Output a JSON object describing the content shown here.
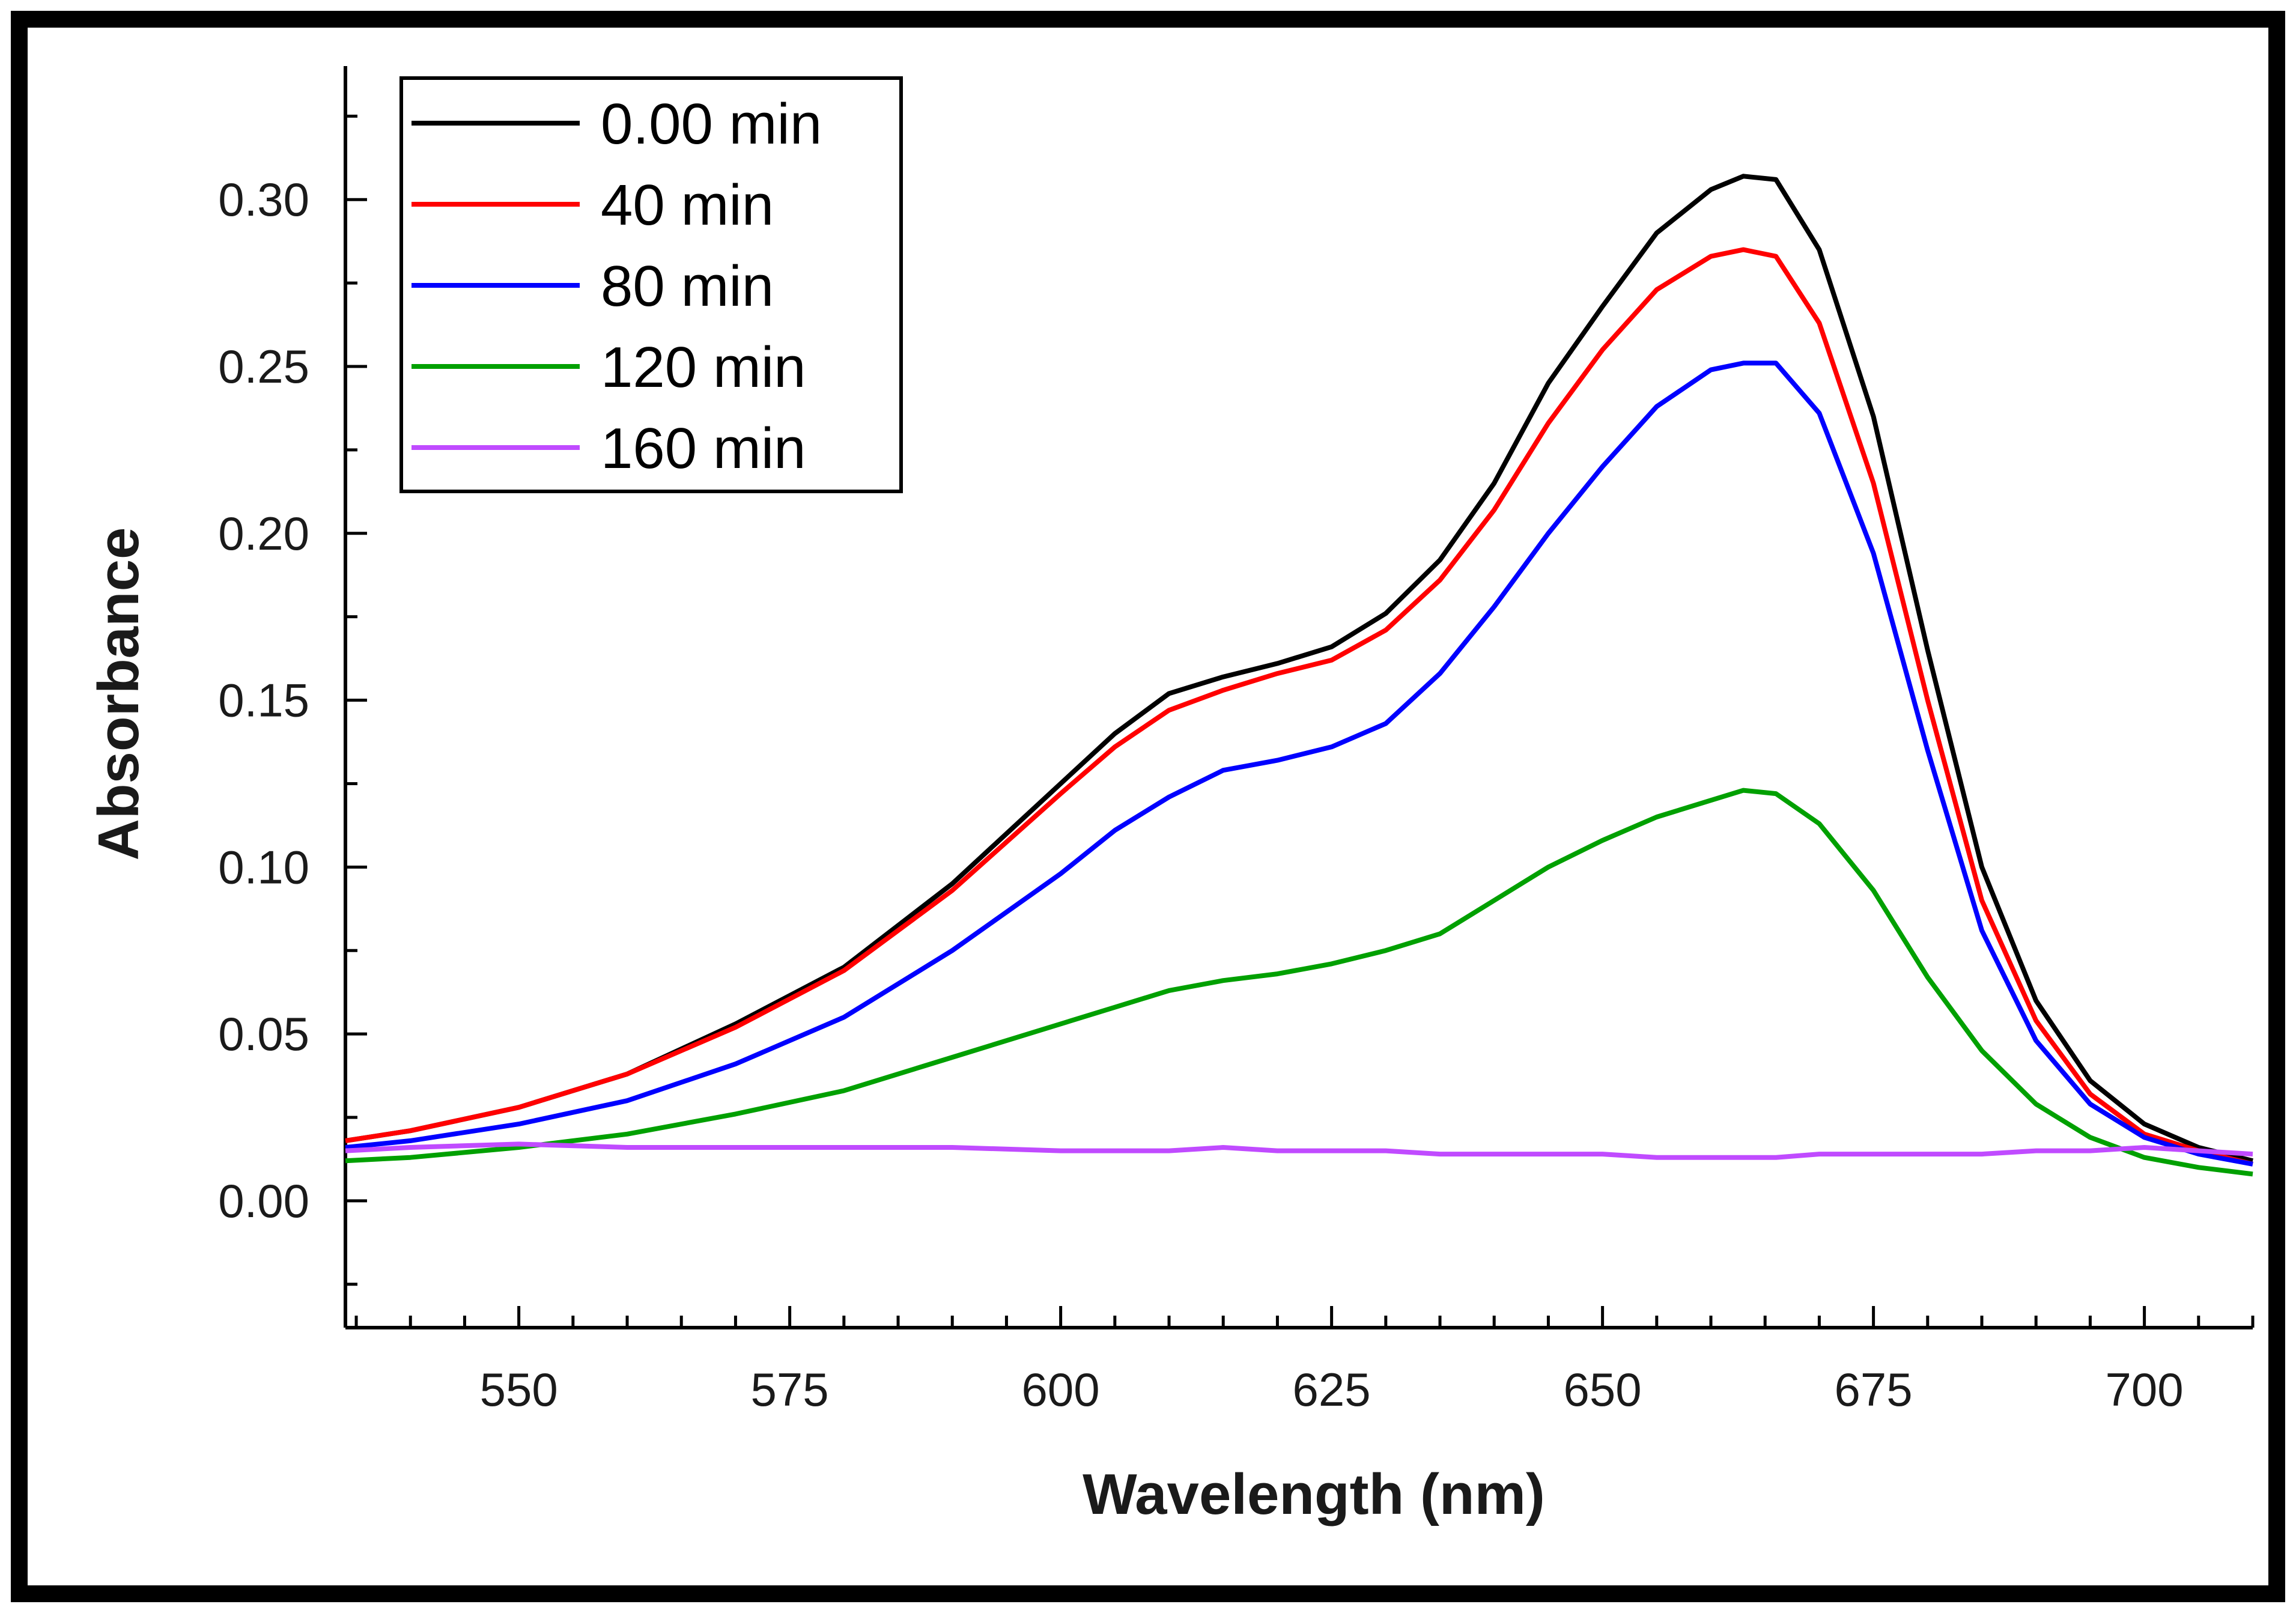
{
  "chart_data": {
    "type": "line",
    "title": "",
    "xlabel": "Wavelength (nm)",
    "ylabel": "Absorbance",
    "xlim": [
      534,
      710
    ],
    "ylim": [
      -0.038,
      0.34
    ],
    "x_ticks": [
      550,
      575,
      600,
      625,
      650,
      675,
      700
    ],
    "x_tick_labels": [
      "550",
      "575",
      "600",
      "625",
      "650",
      "675",
      "700"
    ],
    "y_ticks": [
      0.0,
      0.05,
      0.1,
      0.15,
      0.2,
      0.25,
      0.3
    ],
    "y_tick_labels": [
      "0.00",
      "0.05",
      "0.10",
      "0.15",
      "0.20",
      "0.25",
      "0.30"
    ],
    "grid": false,
    "legend_position": "top-left",
    "x": [
      534,
      540,
      550,
      560,
      570,
      580,
      590,
      600,
      605,
      610,
      615,
      620,
      625,
      630,
      635,
      640,
      645,
      650,
      655,
      660,
      663,
      666,
      670,
      675,
      680,
      685,
      690,
      695,
      700,
      705,
      710
    ],
    "series": [
      {
        "name": "0.00 min",
        "color": "#000000",
        "values": [
          0.018,
          0.021,
          0.028,
          0.038,
          0.053,
          0.07,
          0.095,
          0.125,
          0.14,
          0.152,
          0.157,
          0.161,
          0.166,
          0.176,
          0.192,
          0.215,
          0.245,
          0.268,
          0.29,
          0.303,
          0.307,
          0.306,
          0.285,
          0.235,
          0.165,
          0.1,
          0.06,
          0.036,
          0.023,
          0.016,
          0.012
        ]
      },
      {
        "name": "40 min",
        "color": "#ff0000",
        "values": [
          0.018,
          0.021,
          0.028,
          0.038,
          0.052,
          0.069,
          0.093,
          0.122,
          0.136,
          0.147,
          0.153,
          0.158,
          0.162,
          0.171,
          0.186,
          0.207,
          0.233,
          0.255,
          0.273,
          0.283,
          0.285,
          0.283,
          0.263,
          0.215,
          0.15,
          0.09,
          0.054,
          0.032,
          0.02,
          0.015,
          0.011
        ]
      },
      {
        "name": "80 min",
        "color": "#0000ff",
        "values": [
          0.016,
          0.018,
          0.023,
          0.03,
          0.041,
          0.055,
          0.075,
          0.098,
          0.111,
          0.121,
          0.129,
          0.132,
          0.136,
          0.143,
          0.158,
          0.178,
          0.2,
          0.22,
          0.238,
          0.249,
          0.251,
          0.251,
          0.236,
          0.194,
          0.135,
          0.081,
          0.048,
          0.029,
          0.019,
          0.014,
          0.011
        ]
      },
      {
        "name": "120 min",
        "color": "#00a000",
        "values": [
          0.012,
          0.013,
          0.016,
          0.02,
          0.026,
          0.033,
          0.043,
          0.053,
          0.058,
          0.063,
          0.066,
          0.068,
          0.071,
          0.075,
          0.08,
          0.09,
          0.1,
          0.108,
          0.115,
          0.12,
          0.123,
          0.122,
          0.113,
          0.093,
          0.067,
          0.045,
          0.029,
          0.019,
          0.013,
          0.01,
          0.008
        ]
      },
      {
        "name": "160 min",
        "color": "#c04bff",
        "values": [
          0.015,
          0.016,
          0.017,
          0.016,
          0.016,
          0.016,
          0.016,
          0.015,
          0.015,
          0.015,
          0.016,
          0.015,
          0.015,
          0.015,
          0.014,
          0.014,
          0.014,
          0.014,
          0.013,
          0.013,
          0.013,
          0.013,
          0.014,
          0.014,
          0.014,
          0.014,
          0.015,
          0.015,
          0.016,
          0.015,
          0.014
        ]
      }
    ]
  }
}
